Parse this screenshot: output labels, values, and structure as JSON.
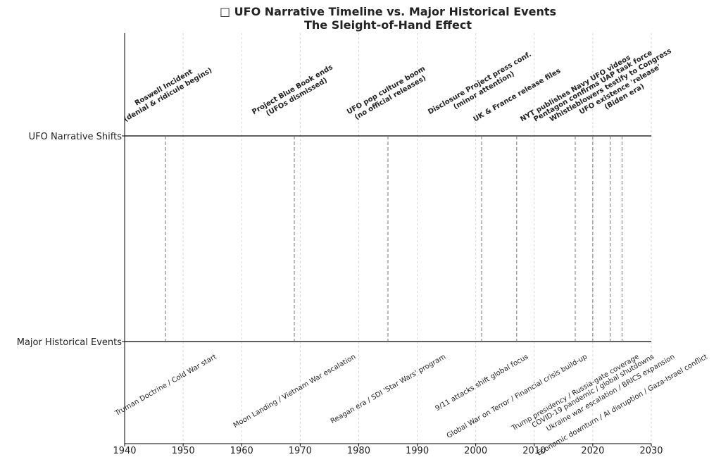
{
  "chart_data": {
    "type": "timeline",
    "title": "□ UFO Narrative Timeline vs. Major Historical Events",
    "subtitle": "The Sleight-of-Hand Effect",
    "xlim": [
      1940,
      2030
    ],
    "xticks": [
      1940,
      1950,
      1960,
      1970,
      1980,
      1990,
      2000,
      2010,
      2020,
      2030
    ],
    "grid": true,
    "series": [
      {
        "name": "UFO Narrative Shifts",
        "color": "#0000ee",
        "events": [
          {
            "year": 1947,
            "lines": [
              "Roswell Incident",
              "(denial & ridicule begins)"
            ]
          },
          {
            "year": 1969,
            "lines": [
              "Project Blue Book ends",
              "(UFOs dismissed)"
            ]
          },
          {
            "year": 1985,
            "lines": [
              "UFO pop culture boom",
              "(no official releases)"
            ]
          },
          {
            "year": 2001,
            "lines": [
              "Disclosure Project press conf.",
              "(minor attention)"
            ]
          },
          {
            "year": 2007,
            "lines": [
              "UK & France release files"
            ]
          },
          {
            "year": 2017,
            "lines": [
              "NYT publishes Navy UFO videos"
            ]
          },
          {
            "year": 2020,
            "lines": [
              "Pentagon confirms UAP task force"
            ]
          },
          {
            "year": 2023,
            "lines": [
              "Whistleblowers testify to Congress"
            ]
          },
          {
            "year": 2025,
            "lines": [
              "UFO existence 'release'",
              "(Biden era)"
            ]
          }
        ]
      },
      {
        "name": "Major Historical Events",
        "color": "#8b0000",
        "events": [
          {
            "year": 1947,
            "lines": [
              "Truman Doctrine / Cold War start"
            ]
          },
          {
            "year": 1969,
            "lines": [
              "Moon Landing / Vietnam War escalation"
            ]
          },
          {
            "year": 1985,
            "lines": [
              "Reagan era / SDI 'Star Wars' program"
            ]
          },
          {
            "year": 2001,
            "lines": [
              "9/11 attacks shift global focus"
            ]
          },
          {
            "year": 2007,
            "lines": [
              "Global War on Terror / Financial crisis build-up"
            ]
          },
          {
            "year": 2017,
            "lines": [
              "Trump presidency / Russia-gate coverage"
            ]
          },
          {
            "year": 2020,
            "lines": [
              "COVID-19 pandemic / global shutdowns"
            ]
          },
          {
            "year": 2023,
            "lines": [
              "Ukraine war escalation / BRICS expansion"
            ]
          },
          {
            "year": 2025,
            "lines": [
              "Economic downturn / AI disruption / Gaza-Israel conflict"
            ]
          }
        ]
      }
    ]
  }
}
